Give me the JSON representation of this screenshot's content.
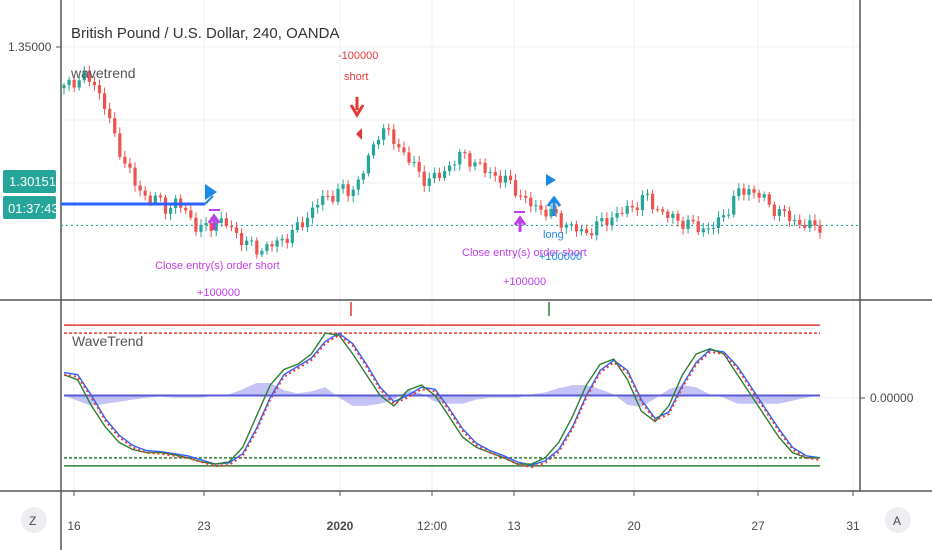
{
  "header": {
    "symbol_title": "British Pound / U.S. Dollar, 240, OANDA",
    "strategy_label": "wavetrend",
    "indicator_label": "WaveTrend"
  },
  "price_axis": {
    "top_tick": "1.35000",
    "current_price": "1.30151",
    "countdown": "01:37:43"
  },
  "indicator_axis": {
    "zero_tick": "0.00000"
  },
  "time_axis": {
    "ticks": [
      "16",
      "23",
      "2020",
      "12:00",
      "13",
      "20",
      "27",
      "31"
    ]
  },
  "corner_buttons": {
    "left": "Z",
    "right": "A"
  },
  "annotations": {
    "short_qty": "-100000",
    "short_label": "short",
    "close_short_1": "Close entry(s) order short",
    "close_short_1_qty": "+100000",
    "close_short_2": "Close entry(s) order short",
    "close_short_2_qty": "+100000",
    "long_label": "long",
    "long_qty": "+100000"
  },
  "colors": {
    "up": "#26a69a",
    "down": "#ef5350",
    "wt1": "#2e7d32",
    "wt2": "#2962ff",
    "sig": "#e53935",
    "hist": "#7b7bea",
    "overbought": "#e53935",
    "oversold": "#2e7d32",
    "price_line": "#26a69a",
    "badge": "#26a69a",
    "short_mark": "#e53935",
    "close_mark": "#c040e8",
    "long_mark": "#1e88e5"
  },
  "chart_data": [
    {
      "type": "candlestick",
      "title": "British Pound / U.S. Dollar, 240, OANDA",
      "ylim": [
        1.283,
        1.358
      ],
      "y_ticks": [
        "1.35000"
      ],
      "current_price": 1.30151,
      "close_path": [
        1.3375,
        1.3395,
        1.3405,
        1.3385,
        1.333,
        1.324,
        1.318,
        1.312,
        1.309,
        1.3085,
        1.306,
        1.3075,
        1.305,
        1.301,
        1.3005,
        1.303,
        1.3015,
        1.299,
        1.2965,
        1.295,
        1.296,
        1.297,
        1.299,
        1.301,
        1.3045,
        1.308,
        1.309,
        1.311,
        1.31,
        1.314,
        1.32,
        1.3275,
        1.3245,
        1.3215,
        1.318,
        1.314,
        1.3135,
        1.315,
        1.318,
        1.32,
        1.3185,
        1.316,
        1.315,
        1.3135,
        1.312,
        1.308,
        1.3065,
        1.3055,
        1.304,
        1.302,
        1.3005,
        1.2995,
        1.301,
        1.303,
        1.304,
        1.3055,
        1.307,
        1.309,
        1.306,
        1.304,
        1.303,
        1.302,
        1.301,
        1.3005,
        1.302,
        1.306,
        1.31,
        1.311,
        1.3095,
        1.307,
        1.305,
        1.3035,
        1.302,
        1.3012,
        1.3015
      ]
    },
    {
      "type": "line",
      "title": "WaveTrend",
      "ylim": [
        -90,
        90
      ],
      "y_ticks": [
        "0.00000"
      ],
      "overbought": 60,
      "oversold": -60,
      "series": [
        {
          "key": "wt1",
          "values": [
            20,
            15,
            -10,
            -30,
            -45,
            -52,
            -55,
            -55,
            -57,
            -60,
            -64,
            -66,
            -64,
            -50,
            -20,
            10,
            25,
            30,
            40,
            60,
            58,
            40,
            20,
            0,
            -10,
            5,
            10,
            0,
            -20,
            -40,
            -50,
            -55,
            -60,
            -66,
            -66,
            -60,
            -45,
            -20,
            10,
            30,
            35,
            15,
            -15,
            -25,
            -10,
            20,
            40,
            45,
            40,
            20,
            0,
            -20,
            -40,
            -55,
            -60,
            -60
          ]
        },
        {
          "key": "wt2",
          "values": [
            22,
            20,
            0,
            -22,
            -38,
            -48,
            -53,
            -54,
            -56,
            -58,
            -62,
            -66,
            -65,
            -56,
            -32,
            -2,
            20,
            28,
            36,
            52,
            60,
            50,
            30,
            8,
            -6,
            0,
            8,
            6,
            -12,
            -32,
            -46,
            -53,
            -58,
            -64,
            -67,
            -63,
            -52,
            -30,
            0,
            24,
            34,
            24,
            -4,
            -22,
            -16,
            10,
            32,
            44,
            42,
            28,
            8,
            -12,
            -32,
            -50,
            -58,
            -60
          ]
        },
        {
          "key": "histogram",
          "values": [
            0,
            -5,
            -10,
            -8,
            -6,
            -4,
            -2,
            -1,
            -2,
            -2,
            -2,
            0,
            1,
            6,
            12,
            12,
            5,
            2,
            4,
            8,
            -2,
            -10,
            -10,
            -8,
            -4,
            5,
            2,
            -6,
            -8,
            -8,
            -4,
            -2,
            -2,
            -2,
            1,
            3,
            7,
            10,
            10,
            6,
            1,
            -9,
            -11,
            -3,
            6,
            10,
            8,
            1,
            -2,
            -8,
            -8,
            -8,
            -8,
            -5,
            -2,
            0
          ]
        }
      ]
    }
  ]
}
